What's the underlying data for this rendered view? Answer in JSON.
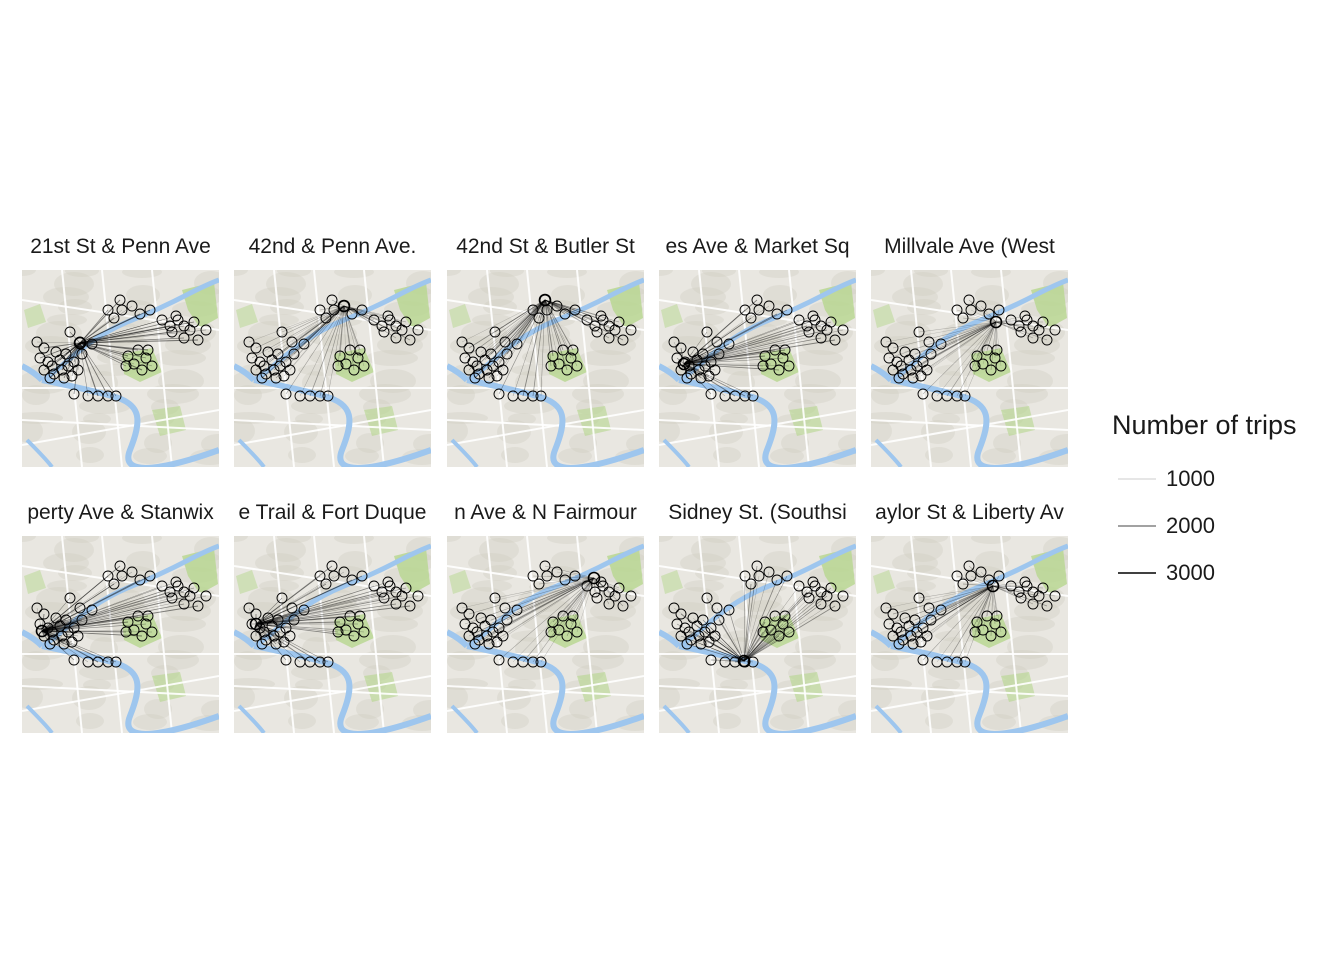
{
  "panels": [
    {
      "title": "21st St & Penn Ave",
      "hub": [
        58,
        73
      ],
      "weight": 0.95
    },
    {
      "title": "42nd & Penn Ave.",
      "hub": [
        110,
        36
      ],
      "weight": 0.55
    },
    {
      "title": "42nd St & Butler St",
      "hub": [
        98,
        30
      ],
      "weight": 0.7
    },
    {
      "title": "es Ave & Market Sq",
      "hub": [
        25,
        94
      ],
      "weight": 0.8
    },
    {
      "title": "Millvale Ave (West",
      "hub": [
        125,
        52
      ],
      "weight": 0.45
    },
    {
      "title": "perty Ave & Stanwix",
      "hub": [
        20,
        95
      ],
      "weight": 0.85
    },
    {
      "title": "e Trail & Fort Duque",
      "hub": [
        22,
        88
      ],
      "weight": 0.8
    },
    {
      "title": "n Ave & N Fairmour",
      "hub": [
        147,
        42
      ],
      "weight": 0.45
    },
    {
      "title": "Sidney St. (Southsi",
      "hub": [
        85,
        125
      ],
      "weight": 0.7
    },
    {
      "title": "aylor St & Liberty Av",
      "hub": [
        122,
        50
      ],
      "weight": 0.5
    }
  ],
  "legend": {
    "title": "Number of trips",
    "items": [
      {
        "label": "1000",
        "stroke": 0.6,
        "color": "#9a9a9a"
      },
      {
        "label": "2000",
        "stroke": 1.1,
        "color": "#444444"
      },
      {
        "label": "3000",
        "stroke": 1.6,
        "color": "#000000"
      }
    ]
  },
  "colors": {
    "river": "#9ec6ee",
    "park": "#b6d78e",
    "land": "#e9e7e1",
    "circle": "#000000"
  }
}
